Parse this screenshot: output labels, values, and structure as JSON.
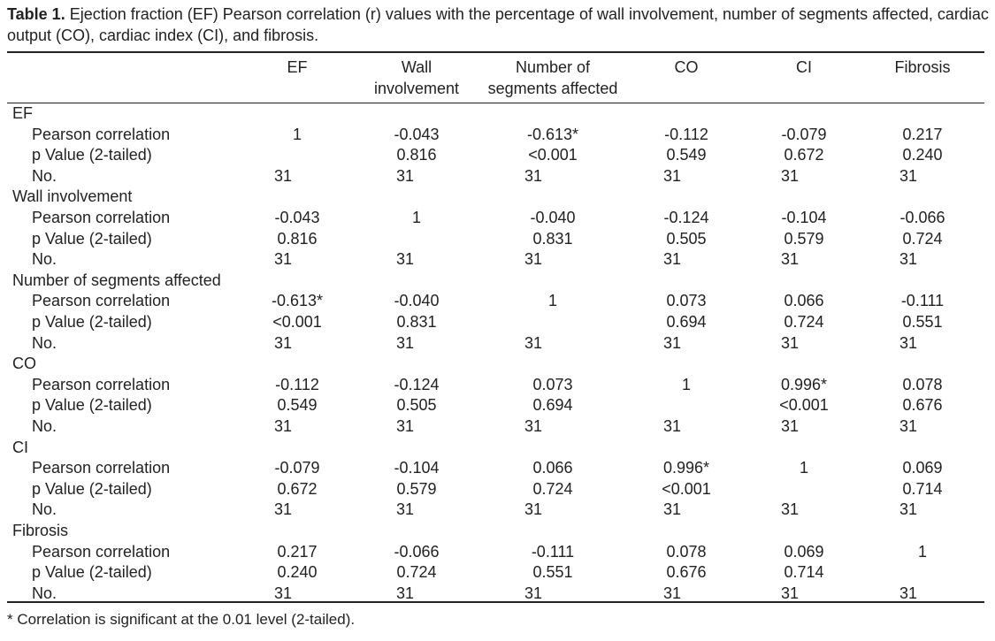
{
  "caption": {
    "label": "Table 1.",
    "text": " Ejection fraction (EF) Pearson correlation (r) values with the percentage of wall involvement, number of segments affected, cardiac output (CO), cardiac index (CI), and fibrosis."
  },
  "columns": [
    [
      "EF"
    ],
    [
      "Wall",
      "involvement"
    ],
    [
      "Number of",
      "segments affected"
    ],
    [
      "CO"
    ],
    [
      "CI"
    ],
    [
      "Fibrosis"
    ]
  ],
  "row_labels": [
    "Pearson correlation",
    "p Value (2-tailed)",
    "No."
  ],
  "groups": [
    {
      "title": "EF",
      "rows": [
        [
          "1",
          "-0.043",
          "-0.613*",
          "-0.112",
          "-0.079",
          "0.217"
        ],
        [
          "",
          "0.816",
          "<0.001",
          "0.549",
          "0.672",
          "0.240"
        ],
        [
          "31",
          "31",
          "31",
          "31",
          "31",
          "31"
        ]
      ]
    },
    {
      "title": "Wall involvement",
      "rows": [
        [
          "-0.043",
          "1",
          "-0.040",
          "-0.124",
          "-0.104",
          "-0.066"
        ],
        [
          "0.816",
          "",
          "0.831",
          "0.505",
          "0.579",
          "0.724"
        ],
        [
          "31",
          "31",
          "31",
          "31",
          "31",
          "31"
        ]
      ]
    },
    {
      "title": "Number of segments affected",
      "rows": [
        [
          "-0.613*",
          "-0.040",
          "1",
          "0.073",
          "0.066",
          "-0.111"
        ],
        [
          "<0.001",
          "0.831",
          "",
          "0.694",
          "0.724",
          "0.551"
        ],
        [
          "31",
          "31",
          "31",
          "31",
          "31",
          "31"
        ]
      ]
    },
    {
      "title": "CO",
      "rows": [
        [
          "-0.112",
          "-0.124",
          "0.073",
          "1",
          "0.996*",
          "0.078"
        ],
        [
          "0.549",
          "0.505",
          "0.694",
          "",
          "<0.001",
          "0.676"
        ],
        [
          "31",
          "31",
          "31",
          "31",
          "31",
          "31"
        ]
      ]
    },
    {
      "title": "CI",
      "rows": [
        [
          "-0.079",
          "-0.104",
          "0.066",
          "0.996*",
          "1",
          "0.069"
        ],
        [
          "0.672",
          "0.579",
          "0.724",
          "<0.001",
          "",
          "0.714"
        ],
        [
          "31",
          "31",
          "31",
          "31",
          "31",
          "31"
        ]
      ]
    },
    {
      "title": "Fibrosis",
      "rows": [
        [
          "0.217",
          "-0.066",
          "-0.111",
          "0.078",
          "0.069",
          "1"
        ],
        [
          "0.240",
          "0.724",
          "0.551",
          "0.676",
          "0.714",
          ""
        ],
        [
          "31",
          "31",
          "31",
          "31",
          "31",
          "31"
        ]
      ]
    }
  ],
  "footnote": "* Correlation is significant at the 0.01 level (2-tailed)."
}
